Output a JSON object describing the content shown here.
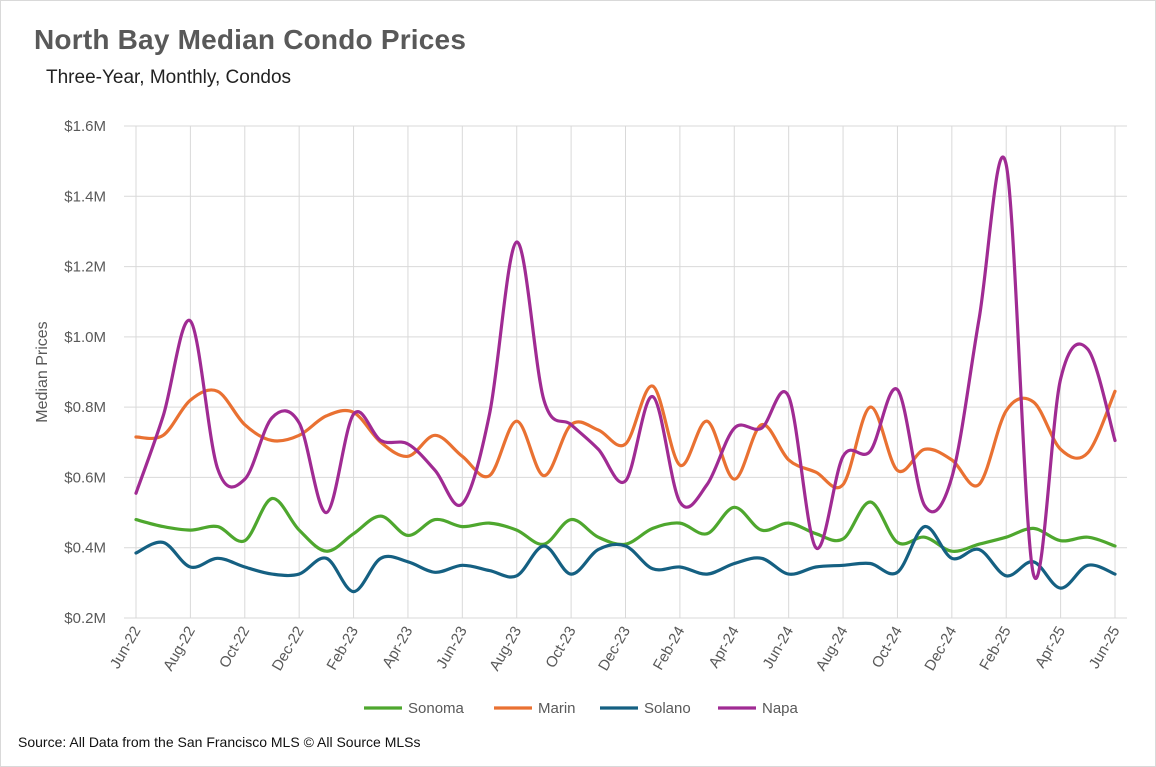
{
  "chart_data": {
    "type": "line",
    "title": "North Bay Median Condo Prices",
    "subtitle": "Three-Year, Monthly, Condos",
    "ylabel": "Median Prices",
    "xlabel": "",
    "ylim": [
      200000,
      1600000
    ],
    "yticks": [
      200000,
      400000,
      600000,
      800000,
      1000000,
      1200000,
      1400000,
      1600000
    ],
    "ytick_labels": [
      "$0.2M",
      "$0.4M",
      "$0.6M",
      "$0.8M",
      "$1.0M",
      "$1.2M",
      "$1.4M",
      "$1.6M"
    ],
    "grid": "on",
    "legend_position": "bottom",
    "x": [
      "Jun-22",
      "Jul-22",
      "Aug-22",
      "Sep-22",
      "Oct-22",
      "Nov-22",
      "Dec-22",
      "Jan-23",
      "Feb-23",
      "Mar-23",
      "Apr-23",
      "May-23",
      "Jun-23",
      "Jul-23",
      "Aug-23",
      "Sep-23",
      "Oct-23",
      "Nov-23",
      "Dec-23",
      "Jan-24",
      "Feb-24",
      "Mar-24",
      "Apr-24",
      "May-24",
      "Jun-24",
      "Jul-24",
      "Aug-24",
      "Sep-24",
      "Oct-24",
      "Nov-24",
      "Dec-24",
      "Jan-25",
      "Feb-25",
      "Mar-25",
      "Apr-25",
      "May-25",
      "Jun-25"
    ],
    "x_tick_labels": [
      "Jun-22",
      "Aug-22",
      "Oct-22",
      "Dec-22",
      "Feb-23",
      "Apr-23",
      "Jun-23",
      "Aug-23",
      "Oct-23",
      "Dec-23",
      "Feb-24",
      "Apr-24",
      "Jun-24",
      "Aug-24",
      "Oct-24",
      "Dec-24",
      "Feb-25",
      "Apr-25",
      "Jun-25"
    ],
    "series": [
      {
        "name": "Sonoma",
        "color": "#4ea72e",
        "values": [
          480000,
          460000,
          450000,
          460000,
          420000,
          540000,
          450000,
          390000,
          440000,
          490000,
          435000,
          480000,
          460000,
          470000,
          450000,
          410000,
          480000,
          430000,
          410000,
          455000,
          470000,
          440000,
          515000,
          450000,
          470000,
          440000,
          425000,
          530000,
          415000,
          430000,
          390000,
          410000,
          430000,
          455000,
          420000,
          430000,
          405000
        ]
      },
      {
        "name": "Marin",
        "color": "#e97132",
        "values": [
          715000,
          720000,
          820000,
          845000,
          750000,
          705000,
          720000,
          775000,
          785000,
          700000,
          660000,
          720000,
          660000,
          605000,
          760000,
          605000,
          750000,
          735000,
          695000,
          860000,
          635000,
          760000,
          595000,
          750000,
          650000,
          615000,
          580000,
          800000,
          620000,
          680000,
          650000,
          580000,
          790000,
          815000,
          680000,
          670000,
          845000
        ]
      },
      {
        "name": "Solano",
        "color": "#156082",
        "values": [
          385000,
          415000,
          345000,
          370000,
          345000,
          325000,
          325000,
          370000,
          275000,
          370000,
          360000,
          330000,
          350000,
          335000,
          320000,
          405000,
          325000,
          395000,
          405000,
          340000,
          345000,
          325000,
          355000,
          370000,
          325000,
          345000,
          350000,
          355000,
          330000,
          460000,
          370000,
          395000,
          320000,
          360000,
          285000,
          350000,
          325000
        ]
      },
      {
        "name": "Napa",
        "color": "#a02b93",
        "values": [
          555000,
          775000,
          1045000,
          625000,
          595000,
          770000,
          755000,
          500000,
          780000,
          705000,
          695000,
          620000,
          525000,
          780000,
          1270000,
          820000,
          750000,
          680000,
          590000,
          830000,
          530000,
          580000,
          740000,
          740000,
          830000,
          400000,
          660000,
          675000,
          850000,
          520000,
          600000,
          1050000,
          1490000,
          325000,
          880000,
          965000,
          705000
        ]
      }
    ],
    "source": "Source: All Data from the San Francisco MLS © All Source MLSs"
  }
}
